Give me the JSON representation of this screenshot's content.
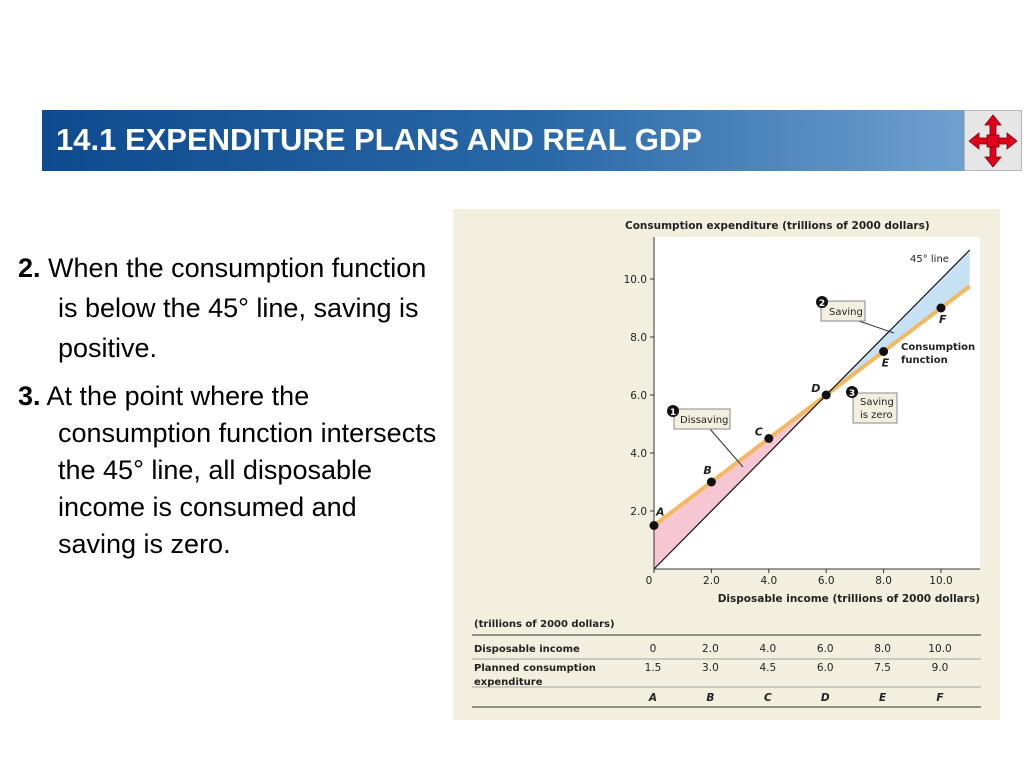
{
  "header": {
    "title": "14.1 EXPENDITURE PLANS AND REAL GDP",
    "nav_icon": "four-arrows-icon",
    "colors": {
      "bar_start": "#0d4a8f",
      "bar_end": "#6fa0cf",
      "nav_arrows": "#e0001a"
    }
  },
  "bullets": [
    {
      "number": "2.",
      "text": "When the consumption function is below the 45° line, saving is positive."
    },
    {
      "number": "3.",
      "text": "At the point where the consumption function intersects the 45° line, all disposable income is consumed and saving is zero."
    }
  ],
  "chart_data": {
    "type": "line",
    "ylabel": "Consumption expenditure (trillions of 2000 dollars)",
    "xlabel": "Disposable income (trillions of 2000 dollars)",
    "xlim": [
      0,
      11.5
    ],
    "ylim": [
      0,
      11.5
    ],
    "x_ticks": [
      "0",
      "2.0",
      "4.0",
      "6.0",
      "8.0",
      "10.0"
    ],
    "y_ticks": [
      "2.0",
      "4.0",
      "6.0",
      "8.0",
      "10.0"
    ],
    "series": [
      {
        "name": "45° line",
        "x": [
          0,
          11
        ],
        "y": [
          0,
          11
        ],
        "color": "#111111"
      },
      {
        "name": "Consumption function",
        "x": [
          0,
          11
        ],
        "y": [
          1.5,
          9.75
        ],
        "color": "#f4b860"
      }
    ],
    "points": [
      {
        "label": "A",
        "x": 0,
        "y": 1.5
      },
      {
        "label": "B",
        "x": 2.0,
        "y": 3.0
      },
      {
        "label": "C",
        "x": 4.0,
        "y": 4.5
      },
      {
        "label": "D",
        "x": 6.0,
        "y": 6.0
      },
      {
        "label": "E",
        "x": 8.0,
        "y": 7.5
      },
      {
        "label": "F",
        "x": 10.0,
        "y": 9.0
      }
    ],
    "annotations": {
      "line45": "45° line",
      "consumption_l1": "Consumption",
      "consumption_l2": "function",
      "callout1_num": "1",
      "callout1_text": "Dissaving",
      "callout2_num": "2",
      "callout2_text": "Saving",
      "callout3_num": "3",
      "callout3_l1": "Saving",
      "callout3_l2": "is zero"
    },
    "region_colors": {
      "saving": "#c5e1f3",
      "dissaving": "#f7c6d3"
    },
    "table": {
      "unit_label": "(trillions of 2000 dollars)",
      "row1_label": "Disposable income",
      "row1_values": [
        "0",
        "2.0",
        "4.0",
        "6.0",
        "8.0",
        "10.0"
      ],
      "row2_label_l1": "Planned consumption",
      "row2_label_l2": "expenditure",
      "row2_values": [
        "1.5",
        "3.0",
        "4.5",
        "6.0",
        "7.5",
        "9.0"
      ],
      "point_labels": [
        "A",
        "B",
        "C",
        "D",
        "E",
        "F"
      ]
    }
  }
}
